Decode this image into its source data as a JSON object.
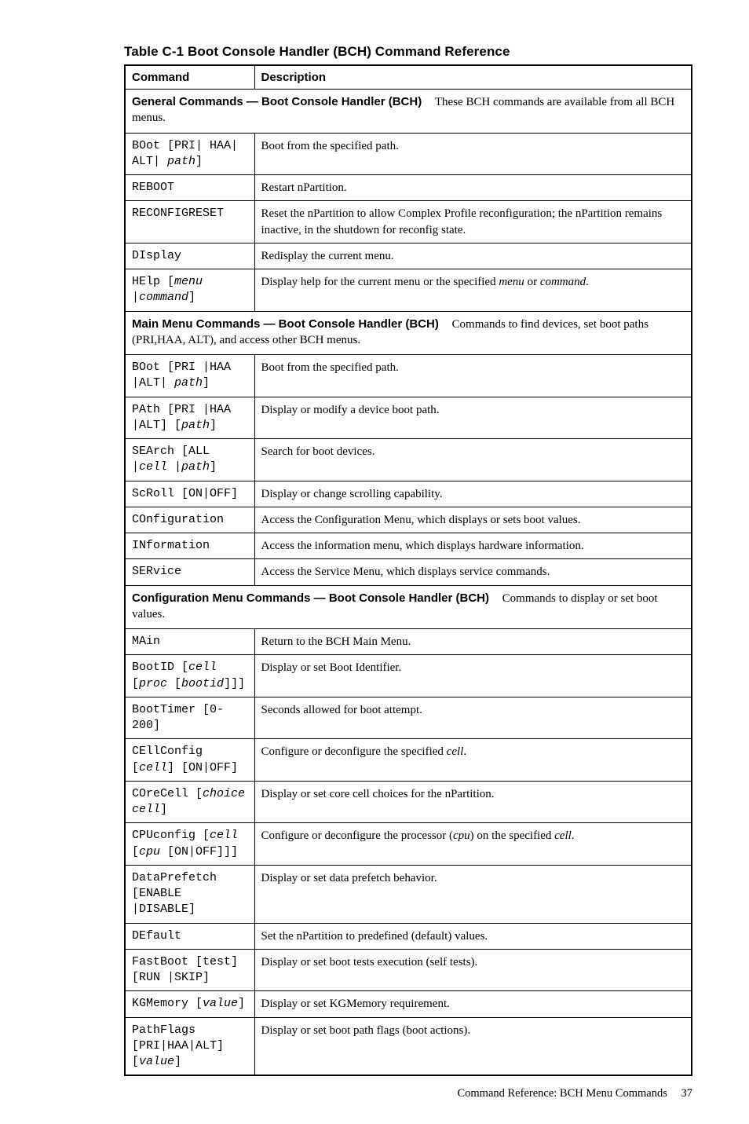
{
  "title": "Table C-1 Boot Console Handler (BCH) Command Reference",
  "headers": {
    "command": "Command",
    "description": "Description"
  },
  "sections": {
    "general": {
      "lead": "General Commands — Boot Console Handler (BCH)",
      "rest": "These BCH commands are available from all BCH menus."
    },
    "mainmenu": {
      "lead": "Main Menu Commands — Boot Console Handler (BCH)",
      "rest": "Commands to find devices, set boot paths (PRI,HAA, ALT), and access other BCH menus."
    },
    "config": {
      "lead": "Configuration Menu Commands — Boot Console Handler (BCH)",
      "rest": "Commands to display or set boot values."
    }
  },
  "rows": {
    "g_boot": {
      "c1": "BOot [PRI| HAA| ALT| ",
      "c1i": "path",
      "c1after": "]",
      "desc": "Boot from the specified path."
    },
    "g_reboot": {
      "c1": "REBOOT",
      "desc": "Restart nPartition."
    },
    "g_recfg": {
      "c1": "RECONFIGRESET",
      "desc": "Reset the nPartition to allow Complex Profile reconfiguration; the nPartition remains inactive, in the shutdown for reconfig state."
    },
    "g_disp": {
      "c1": "DIsplay",
      "desc": "Redisplay the current menu."
    },
    "g_help": {
      "c1": "HElp [",
      "c1i": "menu |command",
      "c1after": "]",
      "desc_pre": "Display help for the current menu or the specified ",
      "desc_i1": "menu",
      "desc_mid": " or ",
      "desc_i2": "command",
      "desc_post": "."
    },
    "m_boot": {
      "c1": "BOot [PRI |HAA |ALT| ",
      "c1i": "path",
      "c1after": "]",
      "desc": "Boot from the specified path."
    },
    "m_path": {
      "c1": "PAth [PRI |HAA |ALT] [",
      "c1i": "path",
      "c1after": "]",
      "desc": "Display or modify a device boot path."
    },
    "m_search": {
      "c1": "SEArch [ALL |",
      "c1i": "cell |path",
      "c1after": "]",
      "desc": "Search for boot devices."
    },
    "m_scroll": {
      "c1": "ScRoll [ON|OFF]",
      "desc": "Display or change scrolling capability."
    },
    "m_config": {
      "c1": "COnfiguration",
      "desc": "Access the Configuration Menu, which displays or sets boot values."
    },
    "m_info": {
      "c1": "INformation",
      "desc": "Access the information menu, which displays hardware information."
    },
    "m_serv": {
      "c1": "SERvice",
      "desc": "Access the Service Menu, which displays service commands."
    },
    "c_main": {
      "c1": "MAin",
      "desc": "Return to the BCH Main Menu."
    },
    "c_bootid": {
      "c1": "BootID [",
      "c1i": "cell",
      "c1mid": " [",
      "c1i2": "proc",
      "c1mid2": " [",
      "c1i3": "bootid",
      "c1after": "]]]",
      "desc": "Display or set Boot Identifier."
    },
    "c_boottm": {
      "c1": "BootTimer [0-200]",
      "desc": "Seconds allowed for boot attempt."
    },
    "c_cellcf": {
      "c1": "CEllConfig [",
      "c1i": "cell",
      "c1after": "] [ON|OFF]",
      "desc_pre": "Configure or deconfigure the specified ",
      "desc_i1": "cell",
      "desc_post": "."
    },
    "c_core": {
      "c1": "COreCell [",
      "c1i": "choice cell",
      "c1after": "]",
      "desc": "Display or set core cell choices for the nPartition."
    },
    "c_cpu": {
      "c1": "CPUconfig [",
      "c1i": "cell",
      "c1mid": " [",
      "c1i2": "cpu",
      "c1after": " [ON|OFF]]]",
      "desc_pre": "Configure or deconfigure the processor (",
      "desc_i1": "cpu",
      "desc_mid": ") on the specified ",
      "desc_i2": "cell",
      "desc_post": "."
    },
    "c_dpre": {
      "c1": "DataPrefetch [ENABLE |DISABLE]",
      "desc": "Display or set data prefetch behavior."
    },
    "c_def": {
      "c1": "DEfault",
      "desc": "Set the nPartition to predefined (default) values."
    },
    "c_fast": {
      "c1": "FastBoot [test][RUN |SKIP]",
      "desc": "Display or set boot tests execution (self tests)."
    },
    "c_kgm": {
      "c1": "KGMemory [",
      "c1i": "value",
      "c1after": "]",
      "desc": "Display or set KGMemory requirement."
    },
    "c_pflag": {
      "c1": "PathFlags [PRI|HAA|ALT] [",
      "c1i": "value",
      "c1after": "]",
      "desc": "Display or set boot path flags (boot actions)."
    }
  },
  "footer": {
    "text": "Command Reference: BCH Menu Commands",
    "page": "37"
  }
}
